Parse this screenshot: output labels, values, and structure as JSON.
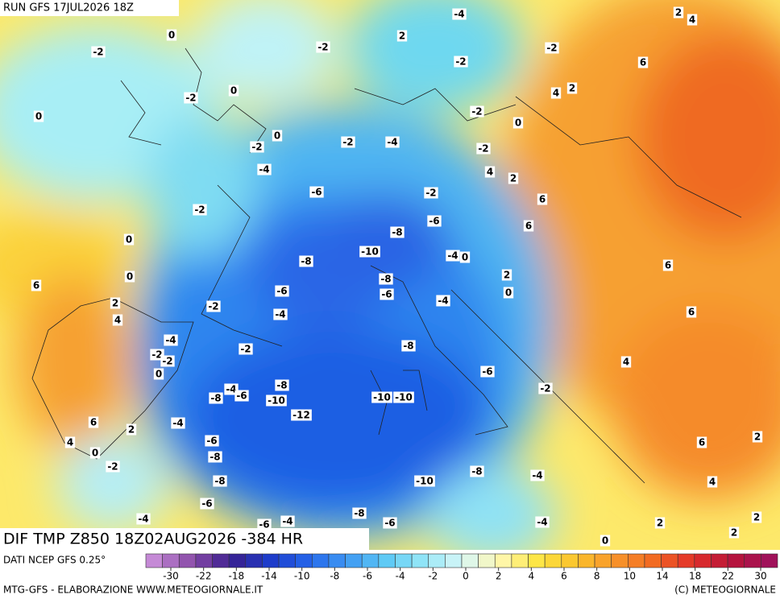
{
  "header": {
    "run": "RUN GFS 17JUL2026 18Z",
    "title": "DIF TMP Z850 18Z02AUG2026 -384 HR"
  },
  "footer": {
    "source": "DATI NCEP GFS 0.25°",
    "credit": "MTG-GFS - ELABORAZIONE WWW.METEOGIORNALE.IT",
    "copyright": "(C) METEOGIORNALE"
  },
  "colorbar": {
    "ticks": [
      -30,
      -22,
      -18,
      -14,
      -10,
      -8,
      -6,
      -4,
      -2,
      0,
      2,
      4,
      6,
      8,
      10,
      14,
      18,
      22,
      30
    ]
  },
  "map_labels": [
    -4,
    2,
    4,
    0,
    2,
    -2,
    -2,
    -2,
    -2,
    6,
    0,
    4,
    2,
    -2,
    0,
    -2,
    0,
    0,
    -2,
    -2,
    -4,
    -2,
    -4,
    4,
    2,
    -6,
    -2,
    6,
    -2,
    -6,
    6,
    -8,
    0,
    -10,
    -4,
    0,
    -8,
    6,
    0,
    2,
    -8,
    6,
    -6,
    -6,
    0,
    2,
    -2,
    -4,
    6,
    4,
    -4,
    -4,
    -2,
    -8,
    -2,
    -2,
    4,
    -6,
    0,
    -8,
    -4,
    -2,
    -8,
    -6,
    -10,
    -10,
    -10,
    -12,
    -4,
    6,
    2,
    -6,
    2,
    4,
    6,
    0,
    -8,
    -2,
    -8,
    -8,
    -10,
    -4,
    4,
    -6,
    -4,
    -8,
    -4,
    -6,
    -6,
    -4,
    2,
    2,
    2,
    0
  ]
}
